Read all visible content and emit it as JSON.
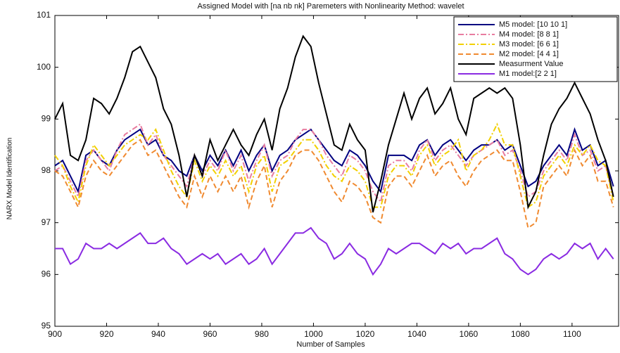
{
  "chart_data": {
    "type": "line",
    "title": "Assigned Model with [na nb nk] Paremeters with Nonlinearity Method: wavelet",
    "x_label": "Number of Samples",
    "y_label": "NARX Model Identification",
    "x": [
      900,
      903,
      906,
      909,
      912,
      915,
      918,
      921,
      924,
      927,
      930,
      933,
      936,
      939,
      942,
      945,
      948,
      951,
      954,
      957,
      960,
      963,
      966,
      969,
      972,
      975,
      978,
      981,
      984,
      987,
      990,
      993,
      996,
      999,
      1002,
      1005,
      1008,
      1011,
      1014,
      1017,
      1020,
      1023,
      1026,
      1029,
      1032,
      1035,
      1038,
      1041,
      1044,
      1047,
      1050,
      1053,
      1056,
      1059,
      1062,
      1065,
      1068,
      1071,
      1074,
      1077,
      1080,
      1083,
      1086,
      1089,
      1092,
      1095,
      1098,
      1101,
      1104,
      1107,
      1110,
      1113,
      1116
    ],
    "series": [
      {
        "name": "M5 model: [10 10 1]",
        "color": "#000080",
        "dash": "none",
        "values": [
          98.1,
          98.2,
          97.9,
          97.6,
          98.3,
          98.4,
          98.2,
          98.1,
          98.4,
          98.6,
          98.7,
          98.8,
          98.5,
          98.6,
          98.3,
          98.2,
          98.0,
          97.9,
          98.3,
          98.0,
          98.3,
          98.1,
          98.4,
          98.1,
          98.4,
          98.0,
          98.3,
          98.5,
          98.0,
          98.3,
          98.4,
          98.6,
          98.7,
          98.8,
          98.6,
          98.4,
          98.2,
          98.1,
          98.4,
          98.3,
          98.1,
          97.8,
          97.6,
          98.3,
          98.3,
          98.3,
          98.2,
          98.5,
          98.6,
          98.3,
          98.5,
          98.6,
          98.4,
          98.2,
          98.4,
          98.5,
          98.5,
          98.6,
          98.4,
          98.5,
          98.1,
          97.7,
          97.8,
          98.1,
          98.3,
          98.5,
          98.3,
          98.8,
          98.4,
          98.5,
          98.1,
          98.2,
          97.7
        ]
      },
      {
        "name": "M4 model: [8 8 1]",
        "color": "#e87ca0",
        "dash": "8 3 2 3",
        "values": [
          98.0,
          98.1,
          97.8,
          97.5,
          98.2,
          98.4,
          98.2,
          98.0,
          98.4,
          98.7,
          98.8,
          98.9,
          98.5,
          98.7,
          98.3,
          98.1,
          97.9,
          97.7,
          98.3,
          97.9,
          98.2,
          98.0,
          98.4,
          98.0,
          98.3,
          97.8,
          98.2,
          98.5,
          97.9,
          98.2,
          98.3,
          98.6,
          98.8,
          98.8,
          98.6,
          98.3,
          98.1,
          97.9,
          98.3,
          98.2,
          98.0,
          97.6,
          97.4,
          98.1,
          98.2,
          98.2,
          98.0,
          98.4,
          98.6,
          98.2,
          98.4,
          98.5,
          98.3,
          98.1,
          98.3,
          98.4,
          98.5,
          98.6,
          98.3,
          98.4,
          98.0,
          97.5,
          97.6,
          98.0,
          98.2,
          98.4,
          98.2,
          98.7,
          98.3,
          98.4,
          98.0,
          98.1,
          97.5
        ]
      },
      {
        "name": "M3 model: [6  6  1]",
        "color": "#f2d000",
        "dash": "8 3 2 3",
        "values": [
          98.3,
          98.1,
          97.7,
          97.4,
          98.1,
          98.5,
          98.3,
          98.1,
          98.3,
          98.5,
          98.6,
          98.7,
          98.6,
          98.8,
          98.4,
          98.0,
          97.7,
          97.5,
          98.2,
          97.8,
          98.1,
          97.9,
          98.2,
          97.9,
          98.1,
          97.6,
          98.1,
          98.3,
          97.6,
          98.1,
          98.2,
          98.4,
          98.6,
          98.6,
          98.4,
          98.1,
          97.9,
          97.8,
          98.1,
          98.0,
          97.8,
          97.3,
          97.3,
          97.9,
          98.1,
          98.1,
          97.9,
          98.3,
          98.5,
          98.1,
          98.3,
          98.4,
          98.6,
          98.0,
          98.3,
          98.4,
          98.6,
          98.9,
          98.5,
          98.5,
          97.9,
          97.3,
          97.4,
          97.9,
          98.1,
          98.3,
          98.1,
          98.5,
          98.3,
          98.5,
          98.2,
          98.1,
          97.4
        ]
      },
      {
        "name": "M2 model: [4 4 1]",
        "color": "#f08a30",
        "dash": "7 4",
        "values": [
          98.0,
          97.9,
          97.6,
          97.3,
          97.9,
          98.2,
          98.0,
          97.9,
          98.1,
          98.3,
          98.5,
          98.6,
          98.3,
          98.4,
          98.1,
          97.8,
          97.5,
          97.3,
          97.9,
          97.5,
          97.9,
          97.6,
          97.9,
          97.6,
          97.9,
          97.3,
          97.8,
          98.1,
          97.3,
          97.8,
          98.0,
          98.3,
          98.4,
          98.4,
          98.2,
          97.9,
          97.6,
          97.4,
          97.8,
          97.7,
          97.5,
          97.1,
          97.0,
          97.7,
          97.9,
          97.9,
          97.7,
          98.0,
          98.3,
          97.9,
          98.1,
          98.2,
          97.9,
          97.7,
          98.0,
          98.2,
          98.3,
          98.4,
          98.2,
          98.2,
          97.6,
          96.9,
          97.0,
          97.7,
          97.9,
          98.1,
          97.9,
          98.4,
          98.1,
          98.3,
          97.8,
          97.8,
          97.3
        ]
      },
      {
        "name": "Measurment Value",
        "color": "#000000",
        "dash": "none",
        "values": [
          99.0,
          99.3,
          98.3,
          98.2,
          98.6,
          99.4,
          99.3,
          99.1,
          99.4,
          99.8,
          100.3,
          100.4,
          100.1,
          99.8,
          99.2,
          98.9,
          98.3,
          97.5,
          98.3,
          97.9,
          98.6,
          98.2,
          98.5,
          98.8,
          98.5,
          98.3,
          98.7,
          99.0,
          98.4,
          99.2,
          99.6,
          100.2,
          100.6,
          100.4,
          99.7,
          99.1,
          98.5,
          98.4,
          98.9,
          98.6,
          98.4,
          97.2,
          97.8,
          98.5,
          99.0,
          99.5,
          99.0,
          99.4,
          99.6,
          99.1,
          99.3,
          99.6,
          99.0,
          98.7,
          99.4,
          99.5,
          99.6,
          99.5,
          99.6,
          99.4,
          98.5,
          97.3,
          97.6,
          98.3,
          98.9,
          99.2,
          99.4,
          99.7,
          99.4,
          99.1,
          98.6,
          98.2,
          97.5
        ]
      },
      {
        "name": "M1 model:[2 2 1]",
        "color": "#8a2be2",
        "dash": "none",
        "values": [
          96.5,
          96.5,
          96.2,
          96.3,
          96.6,
          96.5,
          96.5,
          96.6,
          96.5,
          96.6,
          96.7,
          96.8,
          96.6,
          96.6,
          96.7,
          96.5,
          96.4,
          96.2,
          96.3,
          96.4,
          96.3,
          96.4,
          96.2,
          96.3,
          96.4,
          96.2,
          96.3,
          96.5,
          96.2,
          96.4,
          96.6,
          96.8,
          96.8,
          96.9,
          96.7,
          96.6,
          96.3,
          96.4,
          96.6,
          96.4,
          96.3,
          96.0,
          96.2,
          96.5,
          96.4,
          96.5,
          96.6,
          96.6,
          96.5,
          96.4,
          96.6,
          96.5,
          96.6,
          96.4,
          96.5,
          96.5,
          96.6,
          96.7,
          96.4,
          96.3,
          96.1,
          96.0,
          96.1,
          96.3,
          96.4,
          96.3,
          96.4,
          96.6,
          96.5,
          96.6,
          96.3,
          96.5,
          96.3
        ]
      }
    ],
    "xlim": [
      900,
      1118
    ],
    "ylim": [
      95,
      101
    ],
    "xticks": [
      900,
      920,
      940,
      960,
      980,
      1000,
      1020,
      1040,
      1060,
      1080,
      1100
    ],
    "yticks": [
      95,
      96,
      97,
      98,
      99,
      100,
      101
    ],
    "legend": "upper right"
  }
}
